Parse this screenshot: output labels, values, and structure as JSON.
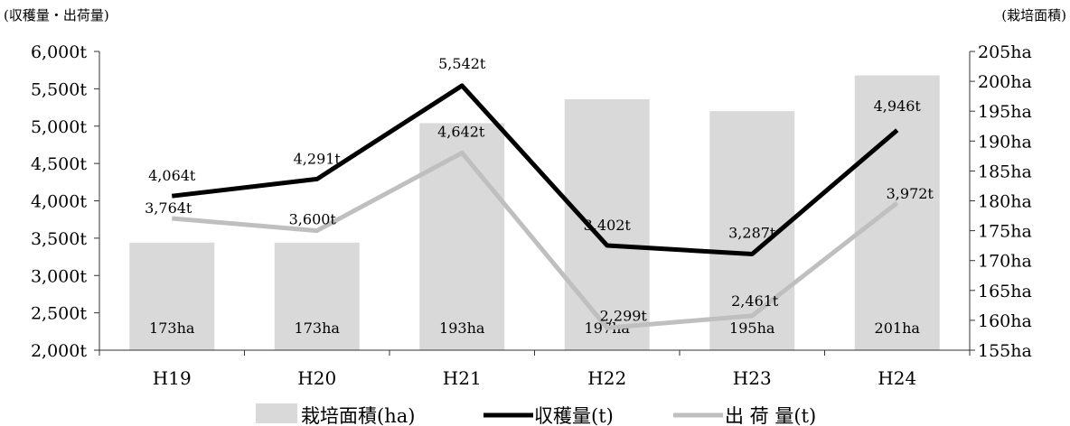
{
  "chart_data": {
    "type": "bar+line",
    "left_axis_unit_label": "(収穫量・出荷量)",
    "right_axis_unit_label": "(栽培面積)",
    "categories": [
      "H19",
      "H20",
      "H21",
      "H22",
      "H23",
      "H24"
    ],
    "left_axis": {
      "ylim": [
        2000,
        6000
      ],
      "ticks": [
        2000,
        2500,
        3000,
        3500,
        4000,
        4500,
        5000,
        5500,
        6000
      ],
      "tick_labels": [
        "2,000t",
        "2,500t",
        "3,000t",
        "3,500t",
        "4,000t",
        "4,500t",
        "5,000t",
        "5,500t",
        "6,000t"
      ]
    },
    "right_axis": {
      "ylim": [
        155,
        205
      ],
      "ticks": [
        155,
        160,
        165,
        170,
        175,
        180,
        185,
        190,
        195,
        200,
        205
      ],
      "tick_labels": [
        "155ha",
        "160ha",
        "165ha",
        "170ha",
        "175ha",
        "180ha",
        "185ha",
        "190ha",
        "195ha",
        "200ha",
        "205ha"
      ]
    },
    "series": [
      {
        "name": "栽培面積(ha)",
        "kind": "bar",
        "axis": "right",
        "color": "#d9d9d9",
        "values": [
          173,
          173,
          193,
          197,
          195,
          201
        ],
        "labels": [
          "173ha",
          "173ha",
          "193ha",
          "197ha",
          "195ha",
          "201ha"
        ]
      },
      {
        "name": "収穫量(t)",
        "kind": "line",
        "axis": "left",
        "color": "#000000",
        "values": [
          4064,
          4291,
          5542,
          3402,
          3287,
          4946
        ],
        "labels": [
          "4,064t",
          "4,291t",
          "5,542t",
          "3,402t",
          "3,287t",
          "4,946t"
        ]
      },
      {
        "name": "出 荷 量(t)",
        "kind": "line",
        "axis": "left",
        "color": "#bfbfbf",
        "values": [
          3764,
          3600,
          4642,
          2299,
          2461,
          3972
        ],
        "labels": [
          "3,764t",
          "3,600t",
          "4,642t",
          "2,299t",
          "2,461t",
          "3,972t"
        ]
      }
    ],
    "legend_position": "bottom"
  }
}
